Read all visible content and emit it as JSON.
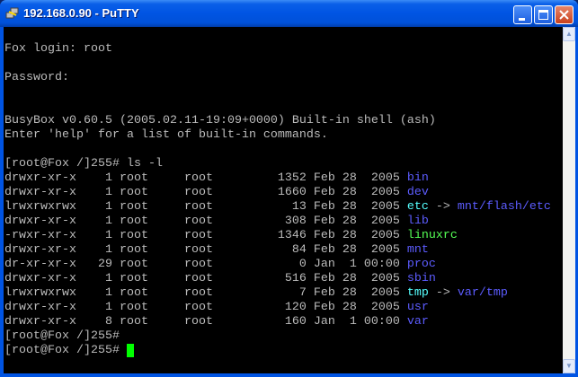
{
  "window": {
    "title": "192.168.0.90 - PuTTY"
  },
  "colors": {
    "default": "#bbbbbb",
    "dir": "#5c5cff",
    "link": "#55ffff",
    "exec": "#55ff55",
    "cursor": "#00ff00"
  },
  "terminal": {
    "lines": [
      [],
      [
        {
          "t": "Fox login: root"
        }
      ],
      [],
      [
        {
          "t": "Password:"
        }
      ],
      [],
      [],
      [
        {
          "t": "BusyBox v0.60.5 (2005.02.11-19:09+0000) Built-in shell (ash)"
        }
      ],
      [
        {
          "t": "Enter 'help' for a list of built-in commands."
        }
      ],
      [],
      [
        {
          "t": "[root@Fox /]255# ls -l"
        }
      ],
      [
        {
          "t": "drwxr-xr-x    1 root     root         1352 Feb 28  2005 "
        },
        {
          "t": "bin",
          "c": "dir"
        }
      ],
      [
        {
          "t": "drwxr-xr-x    1 root     root         1660 Feb 28  2005 "
        },
        {
          "t": "dev",
          "c": "dir"
        }
      ],
      [
        {
          "t": "lrwxrwxrwx    1 root     root           13 Feb 28  2005 "
        },
        {
          "t": "etc",
          "c": "link"
        },
        {
          "t": " -> "
        },
        {
          "t": "mnt/flash/etc",
          "c": "dir"
        }
      ],
      [
        {
          "t": "drwxr-xr-x    1 root     root          308 Feb 28  2005 "
        },
        {
          "t": "lib",
          "c": "dir"
        }
      ],
      [
        {
          "t": "-rwxr-xr-x    1 root     root         1346 Feb 28  2005 "
        },
        {
          "t": "linuxrc",
          "c": "exec"
        }
      ],
      [
        {
          "t": "drwxr-xr-x    1 root     root           84 Feb 28  2005 "
        },
        {
          "t": "mnt",
          "c": "dir"
        }
      ],
      [
        {
          "t": "dr-xr-xr-x   29 root     root            0 Jan  1 00:00 "
        },
        {
          "t": "proc",
          "c": "dir"
        }
      ],
      [
        {
          "t": "drwxr-xr-x    1 root     root          516 Feb 28  2005 "
        },
        {
          "t": "sbin",
          "c": "dir"
        }
      ],
      [
        {
          "t": "lrwxrwxrwx    1 root     root            7 Feb 28  2005 "
        },
        {
          "t": "tmp",
          "c": "link"
        },
        {
          "t": " -> "
        },
        {
          "t": "var/tmp",
          "c": "dir"
        }
      ],
      [
        {
          "t": "drwxr-xr-x    1 root     root          120 Feb 28  2005 "
        },
        {
          "t": "usr",
          "c": "dir"
        }
      ],
      [
        {
          "t": "drwxr-xr-x    8 root     root          160 Jan  1 00:00 "
        },
        {
          "t": "var",
          "c": "dir"
        }
      ],
      [
        {
          "t": "[root@Fox /]255#"
        }
      ],
      [
        {
          "t": "[root@Fox /]255# "
        },
        {
          "cursor": true
        }
      ]
    ]
  }
}
